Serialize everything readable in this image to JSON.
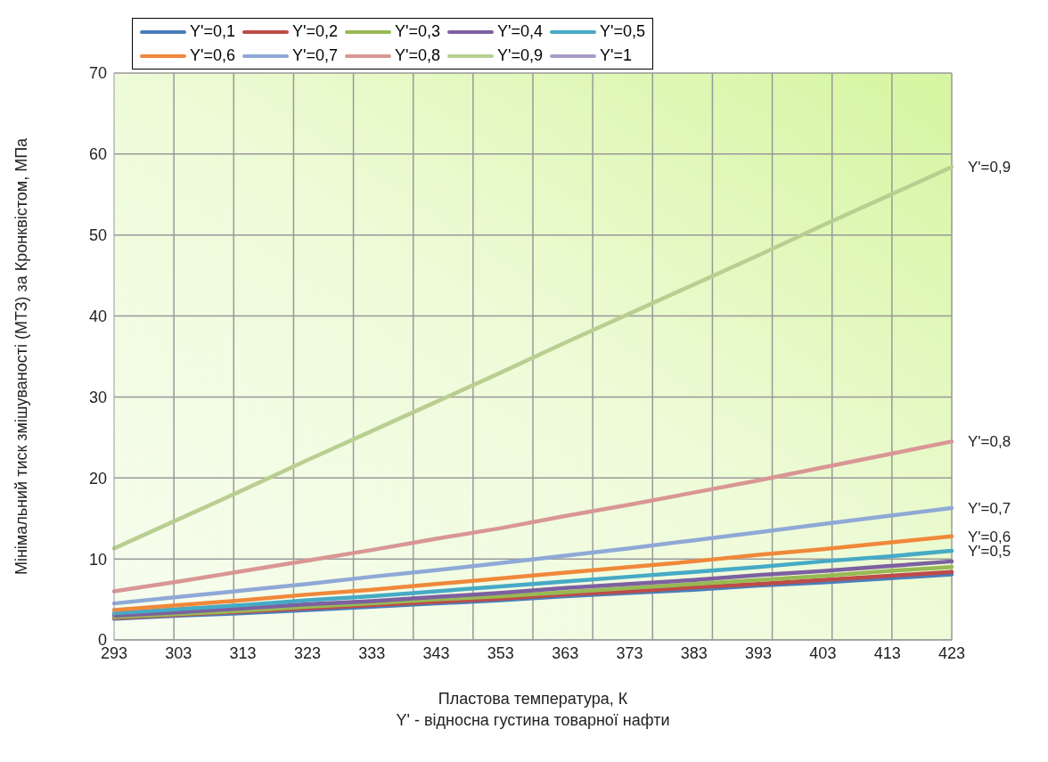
{
  "chart_data": {
    "type": "line",
    "xlabel": "Пластова температура, К",
    "ylabel": "Мінімальний  тиск змішуваності (МТЗ) за Кронквістом, МПа",
    "categories": [
      "293",
      "303",
      "313",
      "323",
      "333",
      "343",
      "353",
      "363",
      "373",
      "383",
      "393",
      "403",
      "413",
      "423"
    ],
    "ylim": [
      0,
      70
    ],
    "yticks": [
      0,
      10,
      20,
      30,
      40,
      50,
      60,
      70
    ],
    "grid": true,
    "legend": "top left",
    "series": [
      {
        "name": "Y'=0,1",
        "color": "#4a7ebb",
        "values": [
          2.6,
          3.0,
          3.3,
          3.7,
          4.1,
          4.5,
          4.9,
          5.4,
          5.8,
          6.2,
          6.7,
          7.1,
          7.6,
          8.1
        ]
      },
      {
        "name": "Y'=0,2",
        "color": "#be4b48",
        "values": [
          2.7,
          3.1,
          3.5,
          3.9,
          4.3,
          4.7,
          5.1,
          5.6,
          6.0,
          6.5,
          6.9,
          7.4,
          7.9,
          8.4
        ]
      },
      {
        "name": "Y'=0,3",
        "color": "#98b954",
        "values": [
          2.8,
          3.2,
          3.6,
          4.1,
          4.5,
          5.0,
          5.4,
          5.9,
          6.4,
          6.9,
          7.4,
          7.9,
          8.5,
          9.0
        ]
      },
      {
        "name": "Y'=0,4",
        "color": "#7d60a0",
        "values": [
          3.0,
          3.4,
          3.9,
          4.4,
          4.8,
          5.3,
          5.8,
          6.4,
          6.9,
          7.4,
          8.0,
          8.5,
          9.1,
          9.7
        ]
      },
      {
        "name": "Y'=0,5",
        "color": "#46aac5",
        "values": [
          3.3,
          3.8,
          4.3,
          4.9,
          5.4,
          6.0,
          6.6,
          7.2,
          7.8,
          8.4,
          9.0,
          9.7,
          10.3,
          11.0
        ]
      },
      {
        "name": "Y'=0,6",
        "color": "#f0883a",
        "values": [
          3.7,
          4.3,
          4.9,
          5.6,
          6.2,
          6.9,
          7.6,
          8.3,
          9.0,
          9.7,
          10.5,
          11.2,
          12.0,
          12.8
        ]
      },
      {
        "name": "Y'=0,7",
        "color": "#8fa9d6",
        "values": [
          4.5,
          5.3,
          6.1,
          6.9,
          7.8,
          8.6,
          9.5,
          10.4,
          11.3,
          12.3,
          13.3,
          14.3,
          15.3,
          16.3
        ]
      },
      {
        "name": "Y'=0,8",
        "color": "#d99694",
        "values": [
          6.0,
          7.2,
          8.5,
          9.8,
          11.1,
          12.5,
          13.8,
          15.3,
          16.7,
          18.2,
          19.7,
          21.3,
          22.9,
          24.5
        ]
      },
      {
        "name": "Y'=0,9",
        "color": "#b8cf91",
        "values": [
          11.3,
          14.9,
          18.5,
          22.2,
          25.8,
          29.4,
          33.0,
          36.7,
          40.3,
          43.9,
          47.5,
          51.2,
          54.8,
          58.4
        ]
      },
      {
        "name": "Y'=1",
        "color": "#a99bc7",
        "values": [
          null,
          null,
          null,
          null,
          null,
          null,
          null,
          null,
          null,
          null,
          null,
          null,
          null,
          null
        ]
      }
    ],
    "annotations": [
      {
        "text": "Y'=0,9",
        "x": "423",
        "y": 58.4
      },
      {
        "text": "Y'=0,8",
        "x": "423",
        "y": 24.5
      },
      {
        "text": "Y'=0,7",
        "x": "423",
        "y": 16.3
      },
      {
        "text": "Y'=0,6",
        "x": "423",
        "y": 12.8
      },
      {
        "text": "Y'=0,5",
        "x": "423",
        "y": 11.0
      },
      "Y' - відносна густина товарної нафти"
    ]
  }
}
